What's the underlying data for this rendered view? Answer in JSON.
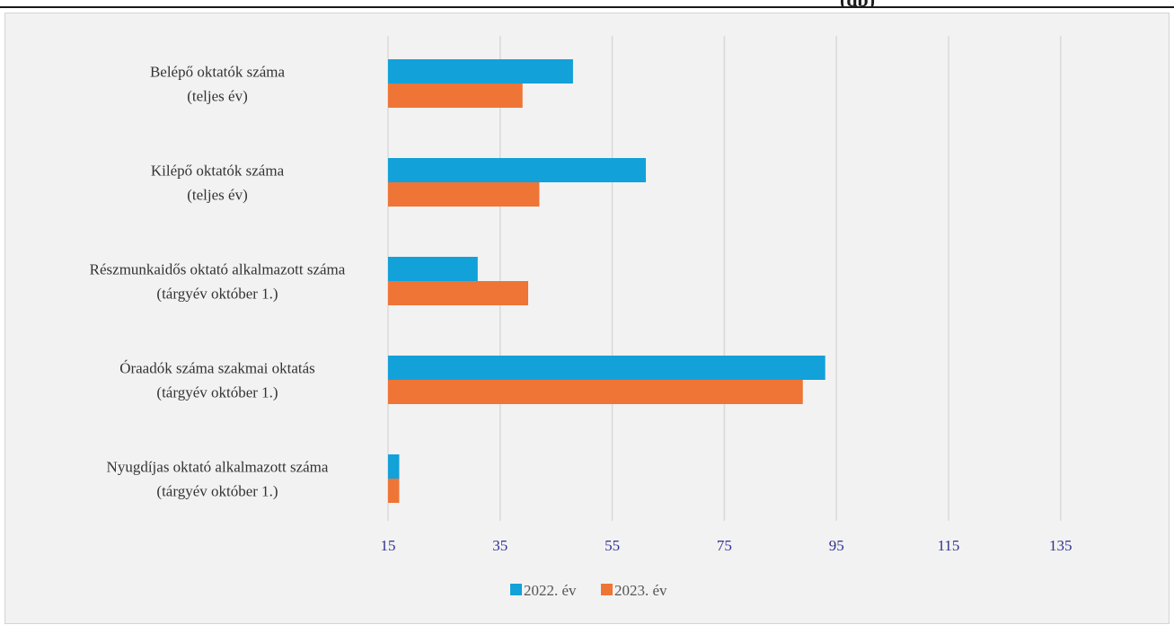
{
  "header_fragment": "(db)",
  "chart_data": {
    "type": "bar",
    "orientation": "horizontal",
    "categories": [
      [
        "Belépő oktatók száma",
        "(teljes év)"
      ],
      [
        "Kilépő oktatók száma",
        "(teljes év)"
      ],
      [
        "Részmunkaidős oktató alkalmazott száma",
        "(tárgyév október 1.)"
      ],
      [
        "Óraadók száma szakmai oktatás",
        "(tárgyév október 1.)"
      ],
      [
        "Nyugdíjas oktató alkalmazott száma",
        "(tárgyév október 1.)"
      ]
    ],
    "series": [
      {
        "name": "2022. év",
        "color": "#12a1d9",
        "values": [
          48,
          61,
          31,
          93,
          17
        ]
      },
      {
        "name": "2023. év",
        "color": "#ee7536",
        "values": [
          39,
          42,
          40,
          89,
          17
        ]
      }
    ],
    "xlim": [
      15,
      155
    ],
    "xticks": [
      15,
      35,
      55,
      75,
      95,
      115,
      135
    ],
    "grid": true,
    "gridline_color": "#d9d9d9",
    "tick_color": "#2e3192",
    "legend_position": "bottom"
  }
}
